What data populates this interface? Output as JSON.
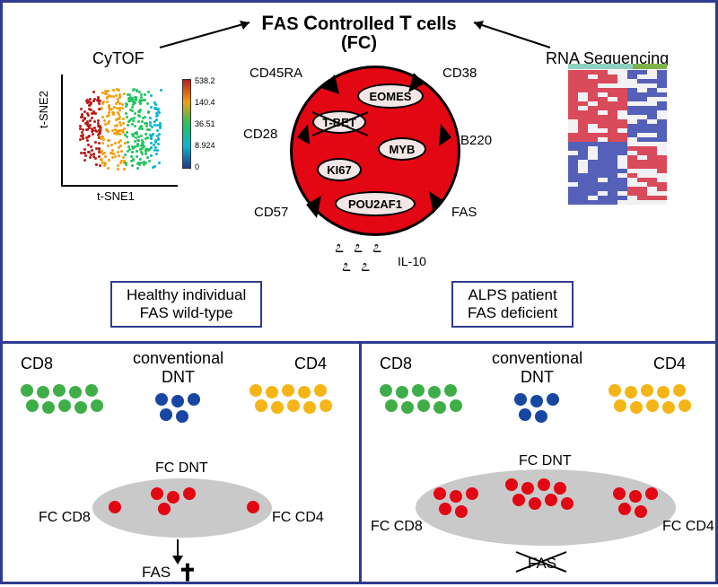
{
  "title": {
    "main": "AS ontrolled  cells",
    "initials": [
      "F",
      "C",
      "T"
    ],
    "sub": "(FC)"
  },
  "panels": {
    "left_method": "CyTOF",
    "right_method": "RNA Sequencing"
  },
  "tsne": {
    "type": "scatter",
    "xlabel": "t-SNE1",
    "ylabel": "t-SNE2",
    "colorbar_ticks": [
      "538.2",
      "140.4",
      "36.51",
      "8.924",
      "0"
    ],
    "colors": {
      "low": "#1e3a8a",
      "mid1": "#06b6d4",
      "mid2": "#22c55e",
      "mid3": "#f59e0b",
      "high": "#b91c1c"
    }
  },
  "cell": {
    "color": "#e30613",
    "surface_markers": [
      "CD45RA",
      "CD28",
      "CD57",
      "CD38",
      "B220",
      "FAS"
    ],
    "inner_markers": [
      "EOMES",
      "T-BET",
      "MYB",
      "KI67",
      "POU2AF1"
    ],
    "tbet_crossed": true,
    "secreted": "IL-10"
  },
  "boxes": {
    "healthy_l1": "Healthy individual",
    "healthy_l2": "FAS wild-type",
    "alps_l1": "ALPS patient",
    "alps_l2": "FAS deficient"
  },
  "bottom": {
    "labels": {
      "cd8": "CD8",
      "cd4": "CD4",
      "conv_dnt_l1": "conventional",
      "conv_dnt_l2": "DNT",
      "fc_dnt": "FC DNT",
      "fc_cd8": "FC CD8",
      "fc_cd4": "FC CD4",
      "fas": "FAS"
    },
    "colors": {
      "cd8": "#3fae49",
      "cd4": "#f5b517",
      "dnt": "#1846a3",
      "fc": "#e30613",
      "blob": "#c9c9c9"
    },
    "dot_size": 14,
    "healthy": {
      "fc_dnt_count": 4,
      "fc_cd8_count": 1,
      "fc_cd4_count": 1,
      "fas_crossed": false,
      "has_cross_symbol": true
    },
    "alps": {
      "fc_dnt_count": 8,
      "fc_cd8_count": 5,
      "fc_cd4_count": 5,
      "fas_crossed": true,
      "has_cross_symbol": false
    }
  },
  "heatmap": {
    "type": "heatmap",
    "header_colors": [
      "#8ed1c0",
      "#8ed1c0",
      "#7fb24a"
    ],
    "header_widths": [
      0.35,
      0.3,
      0.35
    ],
    "palette": {
      "high": "#d94a5a",
      "mid": "#f2f2f4",
      "low": "#5560b8"
    }
  }
}
